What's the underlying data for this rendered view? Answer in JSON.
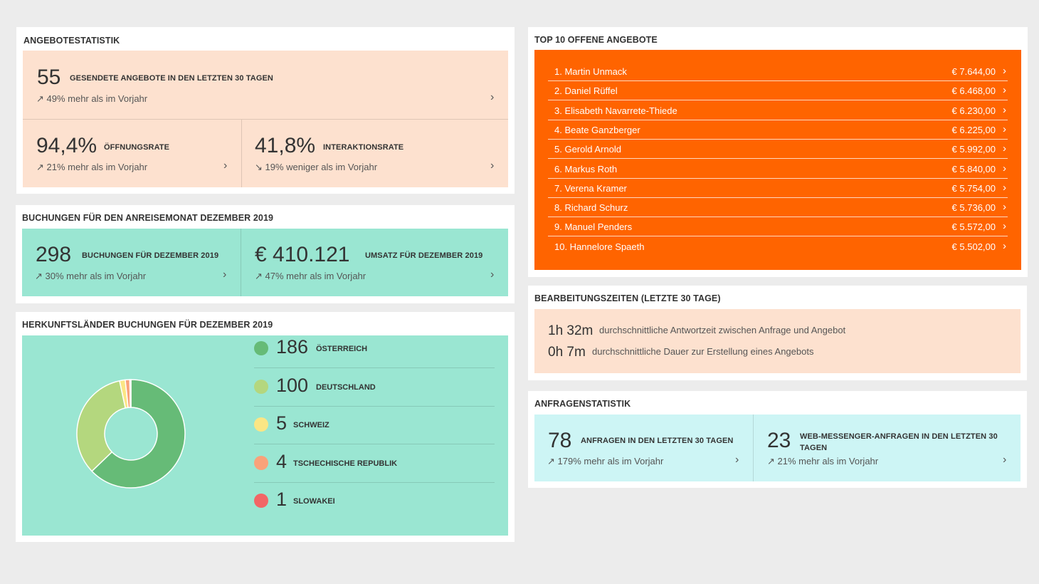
{
  "angebote": {
    "title": "ANGEBOTESTATISTIK",
    "top": {
      "value": "55",
      "label": "GESENDETE ANGEBOTE IN DEN LETZTEN 30 TAGEN",
      "trend": "↗ 49% mehr als im Vorjahr"
    },
    "left": {
      "value": "94,4%",
      "label": "ÖFFNUNGSRATE",
      "trend": "↗ 21% mehr als im Vorjahr"
    },
    "right": {
      "value": "41,8%",
      "label": "INTERAKTIONSRATE",
      "trend": "↘ 19% weniger als im Vorjahr"
    }
  },
  "buchungen": {
    "title": "BUCHUNGEN FÜR DEN ANREISEMONAT DEZEMBER 2019",
    "left": {
      "value": "298",
      "label": "BUCHUNGEN FÜR DEZEMBER 2019",
      "trend": "↗ 30% mehr als im Vorjahr"
    },
    "right": {
      "value": "€ 410.121",
      "label": "UMSATZ FÜR DEZEMBER 2019",
      "trend": "↗ 47% mehr als im Vorjahr"
    }
  },
  "herkunft": {
    "title": "HERKUNFTSLÄNDER BUCHUNGEN FÜR DEZEMBER 2019",
    "countries": [
      {
        "value": "186",
        "label": "ÖSTERREICH",
        "color": "#66bb77"
      },
      {
        "value": "100",
        "label": "DEUTSCHLAND",
        "color": "#b4d77e"
      },
      {
        "value": "5",
        "label": "SCHWEIZ",
        "color": "#fbe685"
      },
      {
        "value": "4",
        "label": "TSCHECHISCHE REPUBLIK",
        "color": "#f9a27a"
      },
      {
        "value": "1",
        "label": "SLOWAKEI",
        "color": "#f26666"
      }
    ]
  },
  "chart_data": {
    "type": "pie",
    "categories": [
      "ÖSTERREICH",
      "DEUTSCHLAND",
      "SCHWEIZ",
      "TSCHECHISCHE REPUBLIK",
      "SLOWAKEI"
    ],
    "values": [
      186,
      100,
      5,
      4,
      1
    ],
    "colors": [
      "#66bb77",
      "#b4d77e",
      "#fbe685",
      "#f9a27a",
      "#f26666"
    ],
    "donut": true
  },
  "top10": {
    "title": "TOP 10 OFFENE ANGEBOTE",
    "items": [
      {
        "name": "1. Martin Unmack",
        "value": "€ 7.644,00"
      },
      {
        "name": "2. Daniel Rüffel",
        "value": "€ 6.468,00"
      },
      {
        "name": "3. Elisabeth Navarrete-Thiede",
        "value": "€ 6.230,00"
      },
      {
        "name": "4. Beate Ganzberger",
        "value": "€ 6.225,00"
      },
      {
        "name": "5. Gerold Arnold",
        "value": "€ 5.992,00"
      },
      {
        "name": "6. Markus Roth",
        "value": "€ 5.840,00"
      },
      {
        "name": "7. Verena Kramer",
        "value": "€ 5.754,00"
      },
      {
        "name": "8. Richard Schurz",
        "value": "€ 5.736,00"
      },
      {
        "name": "9. Manuel Penders",
        "value": "€ 5.572,00"
      },
      {
        "name": "10. Hannelore Spaeth",
        "value": "€ 5.502,00"
      }
    ]
  },
  "bearbeitung": {
    "title": "BEARBEITUNGSZEITEN (LETZTE 30 TAGE)",
    "rows": [
      {
        "time": "1h 32m",
        "desc": "durchschnittliche Antwortzeit zwischen Anfrage und Angebot"
      },
      {
        "time": "0h 7m",
        "desc": "durchschnittliche Dauer zur Erstellung eines Angebots"
      }
    ]
  },
  "anfragen": {
    "title": "ANFRAGENSTATISTIK",
    "left": {
      "value": "78",
      "label": "ANFRAGEN IN DEN LETZTEN 30 TAGEN",
      "trend": "↗ 179% mehr als im Vorjahr"
    },
    "right": {
      "value": "23",
      "label": "WEB-MESSENGER-ANFRAGEN IN DEN LETZTEN 30 TAGEN",
      "trend": "↗ 21% mehr als im Vorjahr"
    }
  },
  "icons": {
    "chevron": "›"
  }
}
